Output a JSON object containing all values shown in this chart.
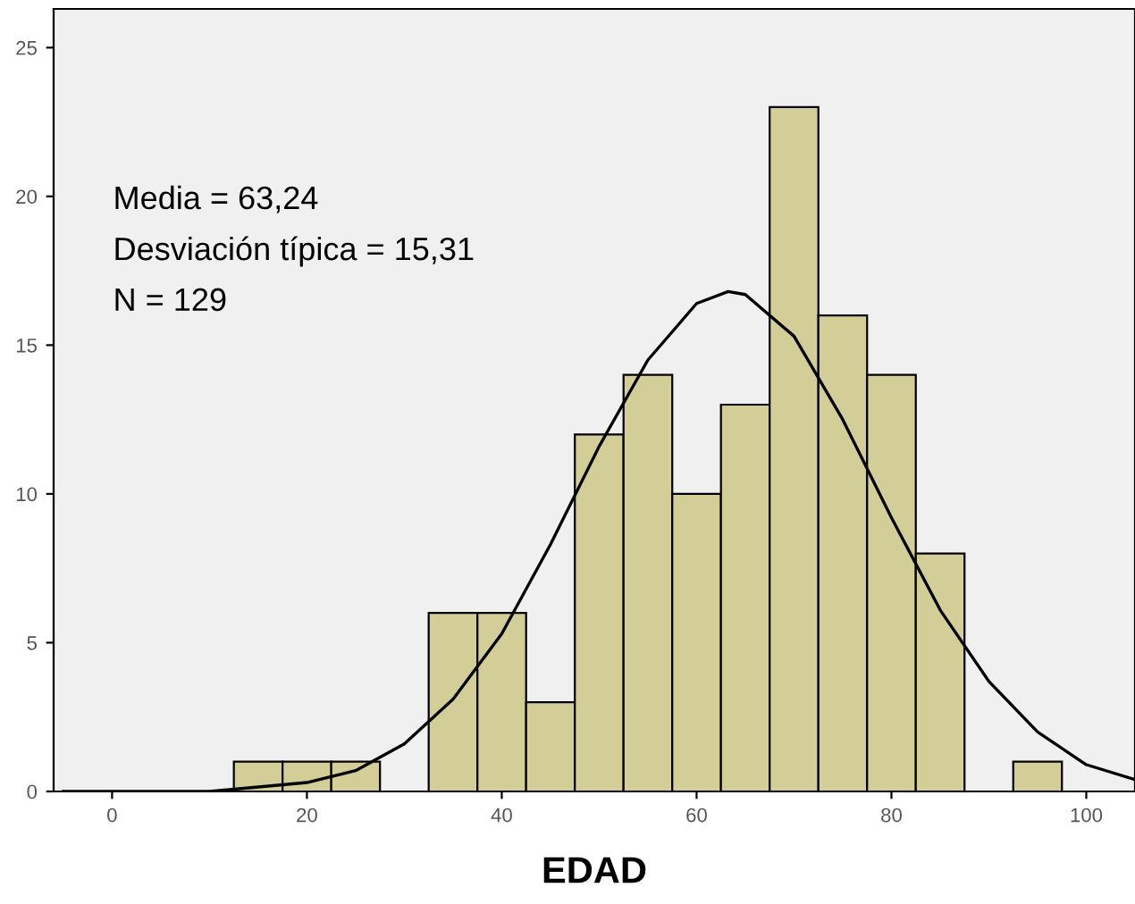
{
  "chart_data": {
    "type": "histogram",
    "xlabel": "EDAD",
    "bins": [
      12.5,
      17.5,
      22.5,
      27.5,
      32.5,
      37.5,
      42.5,
      47.5,
      52.5,
      57.5,
      62.5,
      67.5,
      72.5,
      77.5,
      82.5,
      87.5,
      92.5,
      97.5
    ],
    "values": [
      1,
      1,
      1,
      0,
      6,
      6,
      3,
      12,
      14,
      10,
      13,
      23,
      16,
      14,
      8,
      0,
      1
    ],
    "color": "#d3ce97",
    "series": [
      {
        "type": "line",
        "color": "#000000",
        "x": [
          -5,
          0,
          10,
          20,
          25,
          30,
          35,
          40,
          45,
          50,
          55,
          60,
          63.24,
          65,
          70,
          75,
          80,
          85,
          90,
          95,
          100,
          105
        ],
        "values": [
          0.0,
          0.0,
          0.0,
          0.3,
          0.7,
          1.6,
          3.1,
          5.3,
          8.3,
          11.6,
          14.5,
          16.4,
          16.8,
          16.7,
          15.3,
          12.5,
          9.2,
          6.1,
          3.7,
          2.0,
          0.9,
          0.4
        ]
      }
    ],
    "annotations": [
      "Media = 63,24",
      "Desviación típica = 15,31",
      "N = 129"
    ],
    "xlim": [
      -6,
      105
    ],
    "ylim": [
      0,
      26.3
    ],
    "xticks": [
      0,
      20,
      40,
      60,
      80,
      100
    ],
    "yticks": [
      0,
      5,
      10,
      15,
      20,
      25
    ],
    "grid": false
  }
}
